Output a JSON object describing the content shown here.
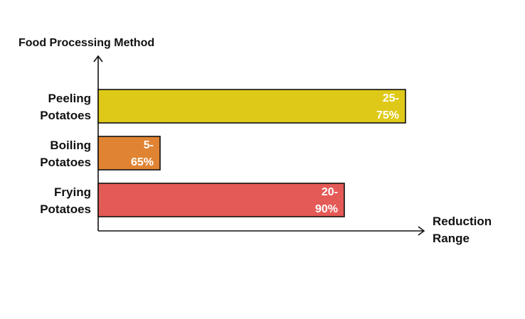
{
  "chart_data": {
    "type": "bar",
    "orientation": "horizontal",
    "ylabel": "Food Processing Method",
    "xlabel_lines": [
      "Reduction",
      "Range"
    ],
    "categories": [
      {
        "lines": [
          "Peeling",
          "Potatoes"
        ]
      },
      {
        "lines": [
          "Boiling",
          "Potatoes"
        ]
      },
      {
        "lines": [
          "Frying",
          "Potatoes"
        ]
      }
    ],
    "values": [
      75,
      65,
      90
    ],
    "labels": [
      {
        "lines": [
          "25-",
          "75%"
        ]
      },
      {
        "lines": [
          "5-",
          "65%"
        ]
      },
      {
        "lines": [
          "20-",
          "90%"
        ]
      }
    ],
    "colors": [
      "#dfc918",
      "#e08433",
      "#e45a56"
    ],
    "grid": false,
    "legend": "none"
  }
}
